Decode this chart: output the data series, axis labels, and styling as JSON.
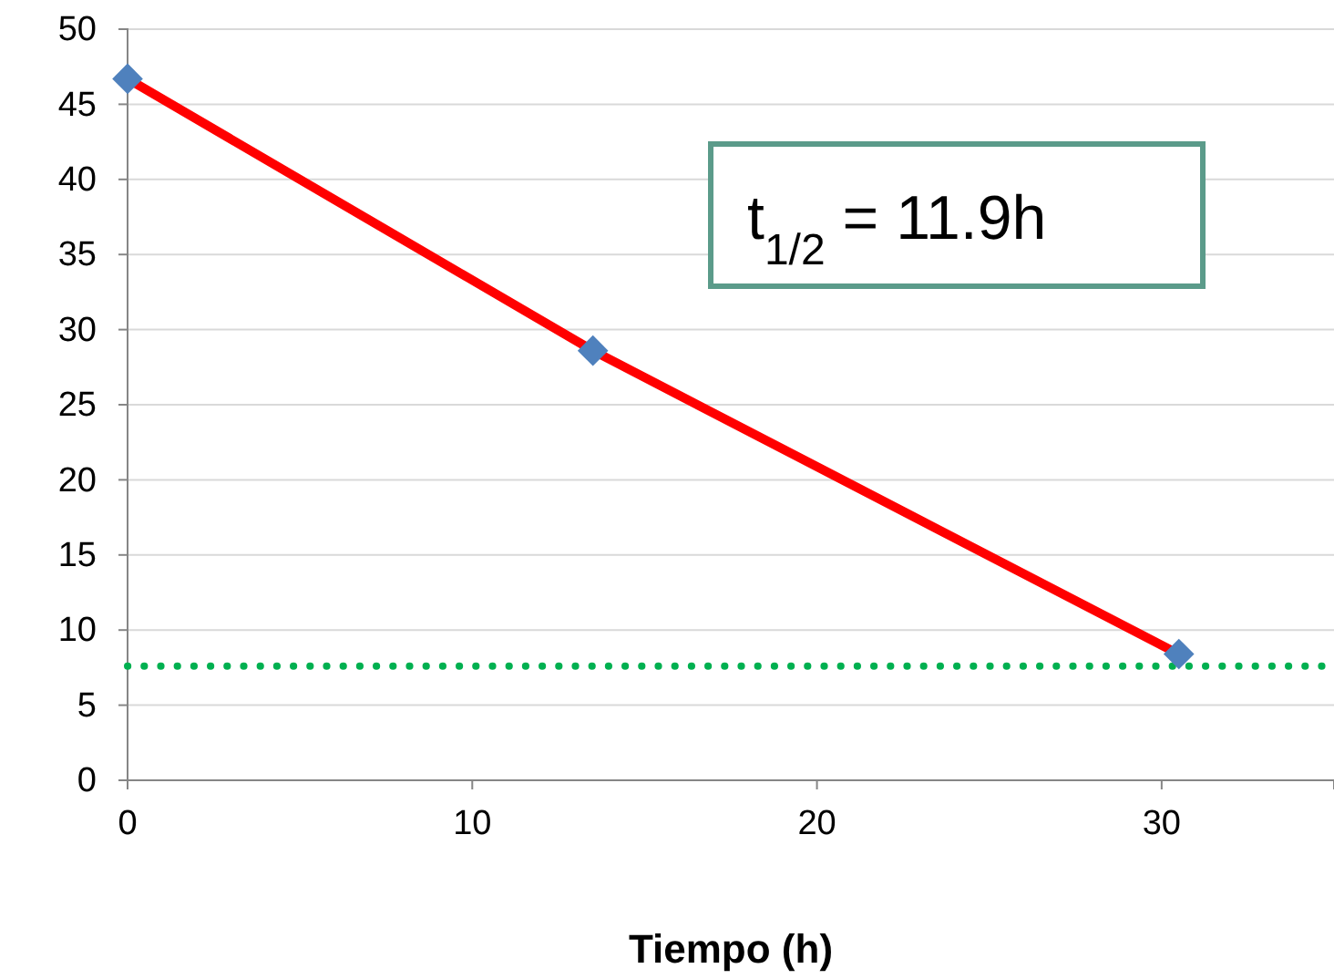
{
  "chart_data": {
    "type": "scatter",
    "xlabel": "Tiempo (h)",
    "x": [
      0,
      13.5,
      30.5
    ],
    "series": [
      {
        "type": "line",
        "color": "#ff0000",
        "x": [
          0,
          13.5,
          30.5
        ],
        "values": [
          46.7,
          28.6,
          8.4
        ],
        "marker": "none",
        "line_style": "solid"
      },
      {
        "color": "#4f81bd",
        "values": [
          46.7,
          28.6,
          8.4
        ],
        "marker": "diamond"
      }
    ],
    "xlim": [
      0,
      35
    ],
    "xticks": [
      0,
      10,
      20,
      30
    ],
    "ylim": [
      0,
      50
    ],
    "yticks": [
      0,
      5,
      10,
      15,
      20,
      25,
      30,
      35,
      40,
      45,
      50
    ],
    "grid": "y",
    "ref_lines": [
      {
        "axis": "y",
        "value": 7.6,
        "color": "#00b050",
        "line_style": "dotted"
      }
    ],
    "annotations": [
      "t$_{1/2}$ = 11.9h"
    ]
  }
}
